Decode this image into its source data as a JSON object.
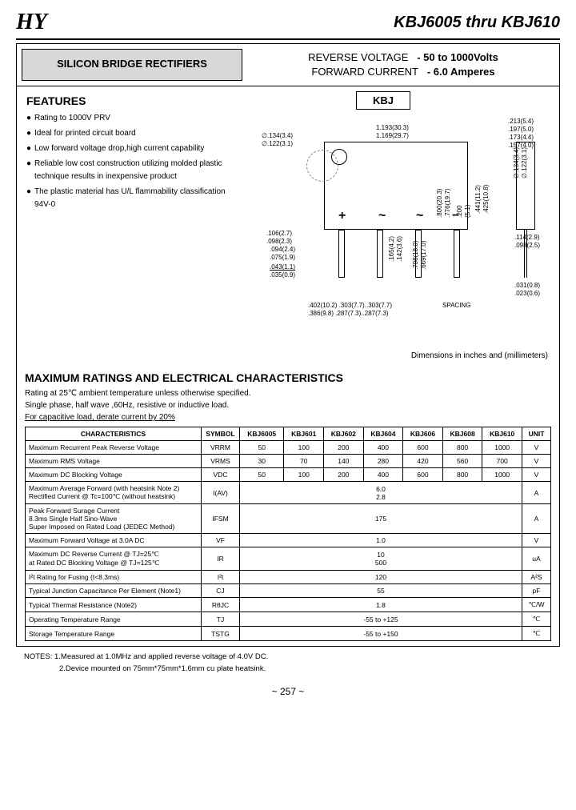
{
  "header": {
    "logo": "HY",
    "title": "KBJ6005 thru KBJ610"
  },
  "title_box": "SILICON BRIDGE RECTIFIERS",
  "ratings_text": {
    "line1_a": "REVERSE VOLTAGE",
    "line1_b": "- 50 to 1000Volts",
    "line2_a": "FORWARD CURRENT",
    "line2_b": "- 6.0 Amperes"
  },
  "features": {
    "head": "FEATURES",
    "items": [
      "Rating to 1000V PRV",
      "Ideal for printed circuit board",
      "Low forward voltage drop,high current capability",
      "Reliable low cost construction utilizing molded plastic technique results in inexpensive product",
      "The plastic material has U/L flammability classification 94V-0"
    ]
  },
  "diagram": {
    "label": "KBJ",
    "dims": {
      "d1": "∅.134(3.4)",
      "d2": "∅.122(3.1)",
      "w1": "1.193(30.3)",
      "w2": "1.169(29.7)",
      "r1": ".213(5.4)",
      "r2": ".197(5.0)",
      "r3": ".173(4.4)",
      "r4": ".157(4.0)",
      "h1": ".800(20.3)",
      "h2": ".776(19.7)",
      "h3": ".441(11.2)",
      "h4": ".425(10.8)",
      "dr1": "∅.134(3.4)",
      "dr2": "∅.122(3.1)",
      "l1": ".106(2.7)",
      "l2": ".098(2.3)",
      "l3": ".094(2.4)",
      "l4": ".075(1.9)",
      "l5": ".043(1.1)",
      "l6": ".035(0.9)",
      "p1": ".165(4.2)",
      "p2": ".142(3.6)",
      "p3": ".708(18.0)",
      "p4": ".669(17.0)",
      "s1": ".402(10.2)",
      "s2": ".386(9.8)",
      "s3": ".303(7.7)",
      "s4": ".287(7.3)",
      "s5": ".303(7.7)",
      "s6": ".287(7.3)",
      "sp": "SPACING",
      "b1": ".114(2.9)",
      "b2": ".098(2.5)",
      "b3": ".031(0.8)",
      "b4": ".023(0.6)",
      "t1": ".200",
      "t2": "(5.1)"
    },
    "syms": [
      "+",
      "~",
      "~",
      "−"
    ],
    "note": "Dimensions in inches and (millimeters)"
  },
  "char": {
    "head": "MAXIMUM RATINGS AND ELECTRICAL CHARACTERISTICS",
    "sub1": "Rating at 25℃ ambient temperature unless otherwise specified.",
    "sub2": "Single phase, half wave ,60Hz, resistive or inductive load.",
    "sub3": "For capacitive load, derate current by 20%",
    "cols": [
      "CHARACTERISTICS",
      "SYMBOL",
      "KBJ6005",
      "KBJ601",
      "KBJ602",
      "KBJ604",
      "KBJ606",
      "KBJ608",
      "KBJ610",
      "UNIT"
    ],
    "rows": [
      {
        "c": "Maximum Recurrent Peak Reverse Voltage",
        "s": "VRRM",
        "v": [
          "50",
          "100",
          "200",
          "400",
          "600",
          "800",
          "1000"
        ],
        "u": "V"
      },
      {
        "c": "Maximum RMS Voltage",
        "s": "VRMS",
        "v": [
          "30",
          "70",
          "140",
          "280",
          "420",
          "560",
          "700"
        ],
        "u": "V"
      },
      {
        "c": "Maximum DC Blocking Voltage",
        "s": "VDC",
        "v": [
          "50",
          "100",
          "200",
          "400",
          "600",
          "800",
          "1000"
        ],
        "u": "V"
      },
      {
        "c": "Maximum Average  Forward   (with heatsink Note 2)\nRectified  Current        @ Tc=100℃   (without heatsink)",
        "s": "I(AV)",
        "span": "6.0\n2.8",
        "u": "A"
      },
      {
        "c": "Peak Forward Surage Current\n8.3ms Single Half Sino-Wave\nSuper Imposed on Rated Load (JEDEC Method)",
        "s": "IFSM",
        "span": "175",
        "u": "A"
      },
      {
        "c": "Maximum  Forward Voltage at 3.0A DC",
        "s": "VF",
        "span": "1.0",
        "u": "V"
      },
      {
        "c": "Maximum  DC Reverse Current       @ TJ=25℃\nat Rated DC Blocking Voltage        @ TJ=125℃",
        "s": "IR",
        "span": "10\n500",
        "u": "uA"
      },
      {
        "c": "I²t Rating for Fusing (t<8.3ms)",
        "s": "I²t",
        "span": "120",
        "u": "A²S"
      },
      {
        "c": "Typical Junction Capacitance Per Element (Note1)",
        "s": "CJ",
        "span": "55",
        "u": "pF"
      },
      {
        "c": "Typical Thermal Resistance (Note2)",
        "s": "RθJC",
        "span": "1.8",
        "u": "℃/W"
      },
      {
        "c": "Operating  Temperature Range",
        "s": "TJ",
        "span": "-55 to +125",
        "u": "℃"
      },
      {
        "c": "Storage Temperature Range",
        "s": "TSTG",
        "span": "-55 to +150",
        "u": "℃"
      }
    ]
  },
  "notes": {
    "line1": "NOTES: 1.Measured at 1.0MHz and applied reverse voltage of 4.0V DC.",
    "line2": "2.Device mounted on 75mm*75mm*1.6mm cu plate heatsink."
  },
  "page": "~ 257 ~"
}
